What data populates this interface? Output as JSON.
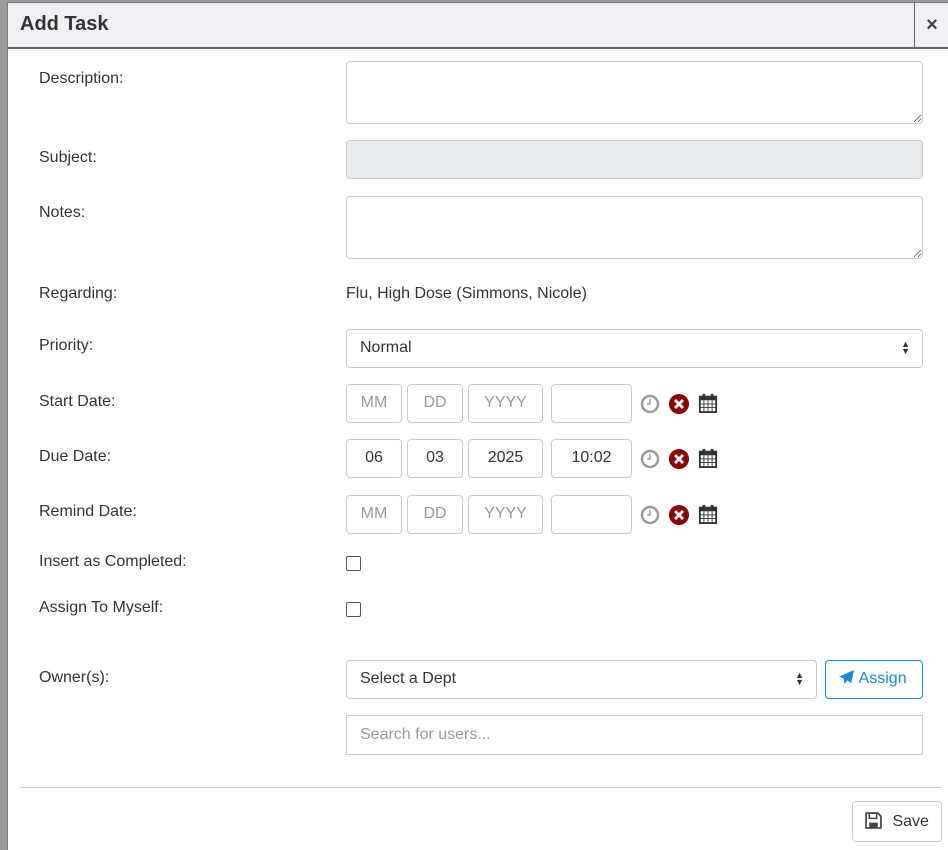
{
  "dialog": {
    "title": "Add Task",
    "close_label": "×"
  },
  "fields": {
    "description": {
      "label": "Description:",
      "value": ""
    },
    "subject": {
      "label": "Subject:",
      "value": ""
    },
    "notes": {
      "label": "Notes:",
      "value": ""
    },
    "regarding": {
      "label": "Regarding:",
      "value": "Flu, High Dose (Simmons, Nicole)"
    },
    "priority": {
      "label": "Priority:",
      "value": "Normal"
    },
    "start_date": {
      "label": "Start Date:",
      "mm": "",
      "dd": "",
      "yyyy": "",
      "time": "",
      "mm_placeholder": "MM",
      "dd_placeholder": "DD",
      "yyyy_placeholder": "YYYY"
    },
    "due_date": {
      "label": "Due Date:",
      "mm": "06",
      "dd": "03",
      "yyyy": "2025",
      "time": "10:02"
    },
    "remind_date": {
      "label": "Remind Date:",
      "mm": "",
      "dd": "",
      "yyyy": "",
      "time": "",
      "mm_placeholder": "MM",
      "dd_placeholder": "DD",
      "yyyy_placeholder": "YYYY"
    },
    "insert_completed": {
      "label": "Insert as Completed:",
      "checked": false
    },
    "assign_myself": {
      "label": "Assign To Myself:",
      "checked": false
    },
    "owners": {
      "label": "Owner(s):",
      "dept_value": "Select a Dept",
      "assign_label": "Assign",
      "search_placeholder": "Search for users..."
    }
  },
  "footer": {
    "save_label": "Save"
  },
  "colors": {
    "accent": "#1a8ccf",
    "clear_icon": "#8b0000",
    "header_bg": "#efeff4"
  }
}
